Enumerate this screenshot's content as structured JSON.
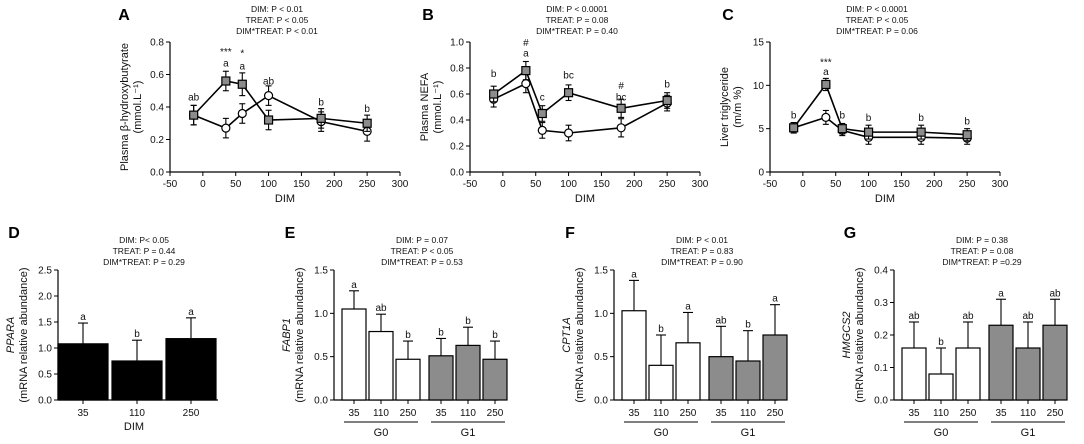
{
  "chart_data": [
    {
      "id": "A",
      "type": "line",
      "title": "",
      "stats": [
        "DIM: P < 0.01",
        "TREAT: P < 0.05",
        "DIM*TREAT: P < 0.01"
      ],
      "ylabel": "Plasma β-hydroxybutyrate",
      "ylabel2": "(mmol.L⁻¹)",
      "xlabel": "DIM",
      "xlim": [
        -50,
        300
      ],
      "ylim": [
        0,
        0.8
      ],
      "xticks": [
        -50,
        0,
        50,
        100,
        150,
        200,
        250,
        300
      ],
      "yticks": [
        0,
        0.2,
        0.4,
        0.6,
        0.8
      ],
      "ytick_labels": [
        "0.0",
        "0.2",
        "0.4",
        "0.6",
        "0.8"
      ],
      "x": [
        -14,
        35,
        60,
        100,
        180,
        250
      ],
      "series": [
        {
          "name": "G1",
          "marker": "square",
          "values": [
            0.35,
            0.56,
            0.54,
            0.32,
            0.33,
            0.3
          ],
          "err": [
            0.06,
            0.06,
            0.07,
            0.06,
            0.06,
            0.05
          ]
        },
        {
          "name": "G0",
          "marker": "circle",
          "values": [
            0.35,
            0.27,
            0.36,
            0.47,
            0.31,
            0.25
          ],
          "err": [
            0.06,
            0.06,
            0.06,
            0.06,
            0.06,
            0.06
          ]
        }
      ],
      "annotations": [
        {
          "x": -14,
          "y": 0.44,
          "text": "ab"
        },
        {
          "x": 35,
          "y": 0.72,
          "text": "***"
        },
        {
          "x": 35,
          "y": 0.65,
          "text": "a"
        },
        {
          "x": 60,
          "y": 0.71,
          "text": "*"
        },
        {
          "x": 60,
          "y": 0.63,
          "text": "a"
        },
        {
          "x": 100,
          "y": 0.54,
          "text": "ab"
        },
        {
          "x": 180,
          "y": 0.41,
          "text": "b"
        },
        {
          "x": 250,
          "y": 0.37,
          "text": "b"
        }
      ]
    },
    {
      "id": "B",
      "type": "line",
      "title": "",
      "stats": [
        "DIM: P < 0.0001",
        "TREAT: P = 0.08",
        "DIM*TREAT: P = 0.40"
      ],
      "ylabel": "Plasma NEFA",
      "ylabel2": "(mmol.L⁻¹)",
      "xlabel": "DIM",
      "xlim": [
        -50,
        300
      ],
      "ylim": [
        0,
        1.0
      ],
      "xticks": [
        -50,
        0,
        50,
        100,
        150,
        200,
        250,
        300
      ],
      "yticks": [
        0,
        0.2,
        0.4,
        0.6,
        0.8,
        1.0
      ],
      "ytick_labels": [
        "0.0",
        "0.2",
        "0.4",
        "0.6",
        "0.8",
        "1.0"
      ],
      "x": [
        -14,
        35,
        60,
        100,
        180,
        250
      ],
      "series": [
        {
          "name": "G1",
          "marker": "square",
          "values": [
            0.6,
            0.78,
            0.45,
            0.61,
            0.49,
            0.55
          ],
          "err": [
            0.06,
            0.07,
            0.06,
            0.06,
            0.07,
            0.06
          ]
        },
        {
          "name": "G0",
          "marker": "circle",
          "values": [
            0.56,
            0.68,
            0.32,
            0.3,
            0.34,
            0.53
          ],
          "err": [
            0.06,
            0.07,
            0.06,
            0.06,
            0.07,
            0.06
          ]
        }
      ],
      "annotations": [
        {
          "x": -14,
          "y": 0.73,
          "text": "b"
        },
        {
          "x": 35,
          "y": 0.97,
          "text": "#"
        },
        {
          "x": 35,
          "y": 0.89,
          "text": "a"
        },
        {
          "x": 60,
          "y": 0.55,
          "text": "c"
        },
        {
          "x": 100,
          "y": 0.72,
          "text": "bc"
        },
        {
          "x": 180,
          "y": 0.64,
          "text": "#"
        },
        {
          "x": 180,
          "y": 0.55,
          "text": "bc"
        },
        {
          "x": 250,
          "y": 0.65,
          "text": "b"
        }
      ]
    },
    {
      "id": "C",
      "type": "line",
      "title": "",
      "stats": [
        "DIM: P < 0.0001",
        "TREAT: P < 0.05",
        "DIM*TREAT: P = 0.06"
      ],
      "ylabel": "Liver triglyceride",
      "ylabel2": "(m/m %)",
      "xlabel": "DIM",
      "xlim": [
        -50,
        300
      ],
      "ylim": [
        0,
        15
      ],
      "xticks": [
        -50,
        0,
        50,
        100,
        150,
        200,
        250,
        300
      ],
      "yticks": [
        0,
        5,
        10,
        15
      ],
      "ytick_labels": [
        "0",
        "5",
        "10",
        "15"
      ],
      "x": [
        -14,
        35,
        60,
        100,
        180,
        250
      ],
      "series": [
        {
          "name": "G1",
          "marker": "square",
          "values": [
            5.1,
            10.1,
            5.0,
            4.6,
            4.6,
            4.3
          ],
          "err": [
            0.6,
            0.7,
            0.6,
            0.8,
            0.8,
            0.7
          ]
        },
        {
          "name": "G0",
          "marker": "circle",
          "values": [
            5.1,
            6.3,
            4.8,
            4.0,
            4.0,
            3.9
          ],
          "err": [
            0.6,
            0.8,
            0.6,
            0.8,
            0.8,
            0.7
          ]
        }
      ],
      "annotations": [
        {
          "x": -14,
          "y": 6.2,
          "text": "b"
        },
        {
          "x": 35,
          "y": 12.3,
          "text": "***"
        },
        {
          "x": 35,
          "y": 11.2,
          "text": "a"
        },
        {
          "x": 60,
          "y": 6.2,
          "text": "b"
        },
        {
          "x": 100,
          "y": 5.9,
          "text": "b"
        },
        {
          "x": 180,
          "y": 5.9,
          "text": "b"
        },
        {
          "x": 250,
          "y": 5.5,
          "text": "b"
        }
      ]
    },
    {
      "id": "D",
      "type": "bar",
      "title": "",
      "stats": [
        "DIM: P< 0.05",
        "TREAT: P = 0.44",
        "DIM*TREAT: P = 0.29"
      ],
      "ylabel": "PPARA",
      "ylabel2": "(mRNA relative abundance)",
      "xlabel": "DIM",
      "ylim": [
        0,
        2.5
      ],
      "yticks": [
        0,
        0.5,
        1.0,
        1.5,
        2.0,
        2.5
      ],
      "ytick_labels": [
        "0.0",
        "0.5",
        "1.0",
        "1.5",
        "2.0",
        "2.5"
      ],
      "categories": [
        "35",
        "110",
        "250"
      ],
      "groups": [],
      "values": [
        1.08,
        0.75,
        1.18
      ],
      "err": [
        0.4,
        0.4,
        0.4
      ],
      "colors": [
        "#000000",
        "#000000",
        "#000000"
      ],
      "letters": [
        "a",
        "b",
        "a"
      ]
    },
    {
      "id": "E",
      "type": "bar",
      "title": "",
      "stats": [
        "DIM: P = 0.07",
        "TREAT: P < 0.05",
        "DIM*TREAT: P = 0.53"
      ],
      "ylabel": "FABP1",
      "ylabel2": "(mRNA relative abundance)",
      "xlabel": "",
      "ylim": [
        0,
        1.5
      ],
      "yticks": [
        0,
        0.5,
        1.0,
        1.5
      ],
      "ytick_labels": [
        "0.0",
        "0.5",
        "1.0",
        "1.5"
      ],
      "categories": [
        "35",
        "110",
        "250",
        "35",
        "110",
        "250"
      ],
      "groups": [
        "G0",
        "G1"
      ],
      "values": [
        1.05,
        0.79,
        0.47,
        0.51,
        0.63,
        0.47
      ],
      "err": [
        0.21,
        0.2,
        0.21,
        0.2,
        0.21,
        0.21
      ],
      "colors": [
        "#ffffff",
        "#ffffff",
        "#ffffff",
        "#8c8c8c",
        "#8c8c8c",
        "#8c8c8c"
      ],
      "letters": [
        "a",
        "ab",
        "b",
        "b",
        "b",
        "b"
      ]
    },
    {
      "id": "F",
      "type": "bar",
      "title": "",
      "stats": [
        "DIM: P < 0.01",
        "TREAT: P = 0.83",
        "DIM*TREAT: P = 0.90"
      ],
      "ylabel": "CPT1A",
      "ylabel2": "(mRNA relative abundance)",
      "xlabel": "",
      "ylim": [
        0,
        1.5
      ],
      "yticks": [
        0,
        0.5,
        1.0,
        1.5
      ],
      "ytick_labels": [
        "0.0",
        "0.5",
        "1.0",
        "1.5"
      ],
      "categories": [
        "35",
        "110",
        "250",
        "35",
        "110",
        "250"
      ],
      "groups": [
        "G0",
        "G1"
      ],
      "values": [
        1.03,
        0.4,
        0.66,
        0.5,
        0.45,
        0.75
      ],
      "err": [
        0.35,
        0.35,
        0.35,
        0.35,
        0.35,
        0.35
      ],
      "colors": [
        "#ffffff",
        "#ffffff",
        "#ffffff",
        "#8c8c8c",
        "#8c8c8c",
        "#8c8c8c"
      ],
      "letters": [
        "a",
        "b",
        "a",
        "ab",
        "b",
        "a"
      ]
    },
    {
      "id": "G",
      "type": "bar",
      "title": "",
      "stats": [
        "DIM: P = 0.38",
        "TREAT: P = 0.08",
        "DIM*TREAT: P =0.29"
      ],
      "ylabel": "HMGCS2",
      "ylabel2": "(mRNA relative abundance)",
      "xlabel": "",
      "ylim": [
        0,
        0.4
      ],
      "yticks": [
        0,
        0.1,
        0.2,
        0.3,
        0.4
      ],
      "ytick_labels": [
        "0.0",
        "0.1",
        "0.2",
        "0.3",
        "0.4"
      ],
      "categories": [
        "35",
        "110",
        "250",
        "35",
        "110",
        "250"
      ],
      "groups": [
        "G0",
        "G1"
      ],
      "values": [
        0.16,
        0.08,
        0.16,
        0.23,
        0.16,
        0.23
      ],
      "err": [
        0.08,
        0.08,
        0.08,
        0.08,
        0.08,
        0.08
      ],
      "colors": [
        "#ffffff",
        "#ffffff",
        "#ffffff",
        "#8c8c8c",
        "#8c8c8c",
        "#8c8c8c"
      ],
      "letters": [
        "ab",
        "b",
        "ab",
        "a",
        "ab",
        "ab"
      ]
    }
  ]
}
